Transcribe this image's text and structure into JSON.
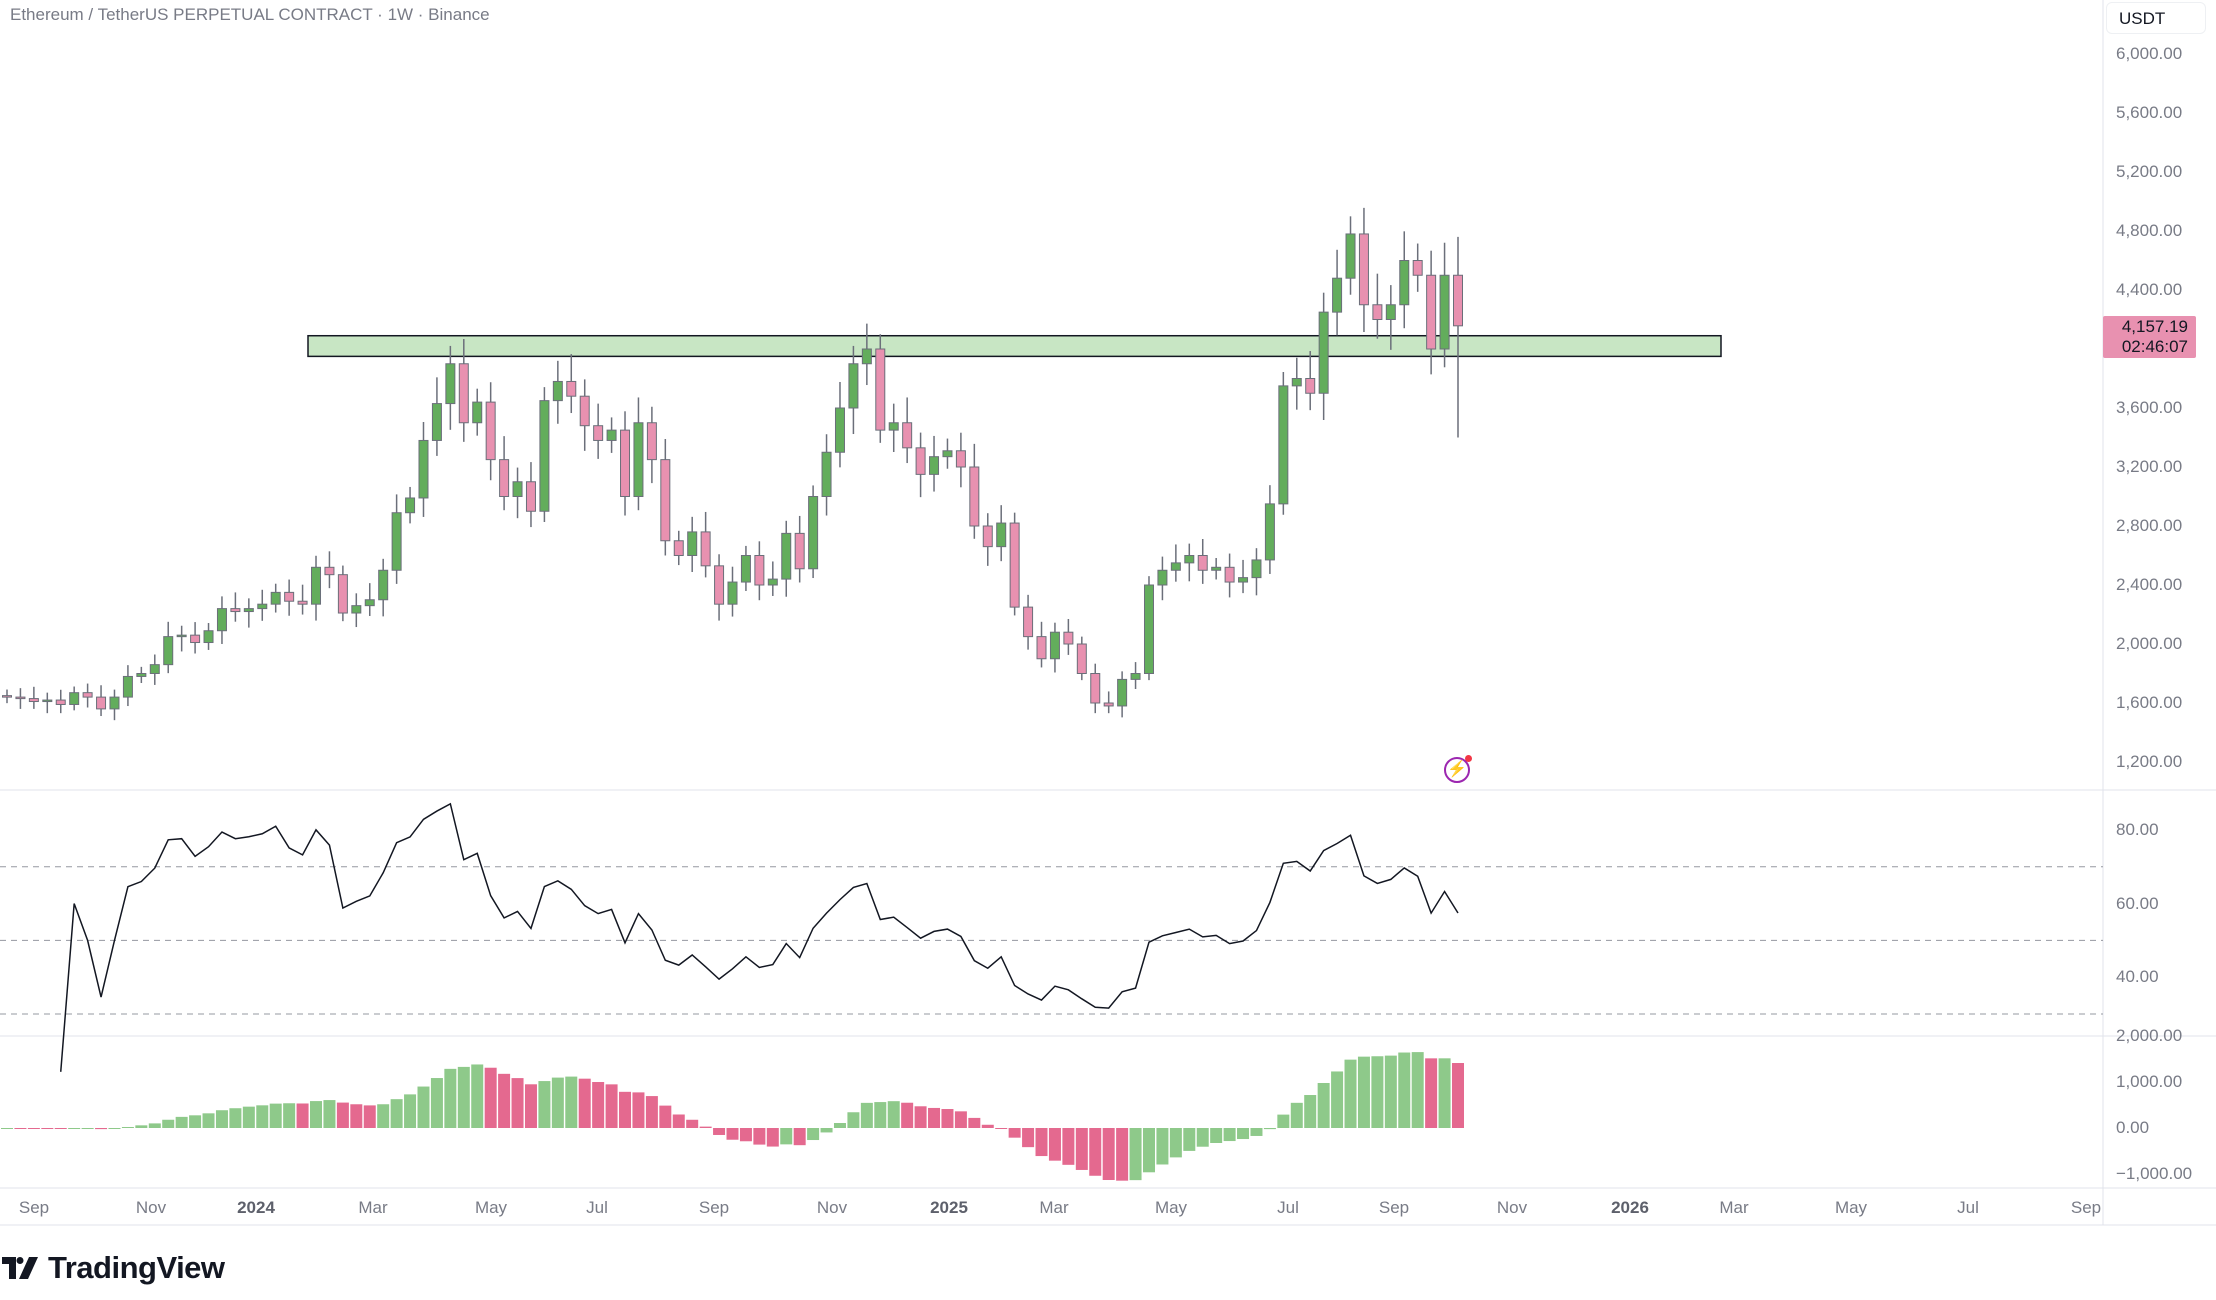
{
  "header": {
    "title": "Ethereum / TetherUS PERPETUAL CONTRACT · 1W · Binance"
  },
  "price_axis": {
    "currency": "USDT",
    "labels": [
      "6,000.00",
      "5,600.00",
      "5,200.00",
      "4,800.00",
      "4,400.00",
      "3,600.00",
      "3,200.00",
      "2,800.00",
      "2,400.00",
      "2,000.00",
      "1,600.00",
      "1,200.00"
    ],
    "values": [
      6000,
      5600,
      5200,
      4800,
      4400,
      3600,
      3200,
      2800,
      2400,
      2000,
      1600,
      1200
    ],
    "last_price": "4,157.19",
    "countdown": "02:46:07"
  },
  "rsi_axis": {
    "labels": [
      "80.00",
      "60.00",
      "40.00"
    ],
    "values": [
      80,
      60,
      40
    ],
    "levels": [
      70,
      50,
      30
    ]
  },
  "macd_axis": {
    "labels": [
      "2,000.00",
      "1,000.00",
      "0.00",
      "−1,000.00"
    ],
    "values": [
      2000,
      1000,
      0,
      -1000
    ]
  },
  "time_axis": {
    "labels": [
      "Sep",
      "Nov",
      "2024",
      "Mar",
      "May",
      "Jul",
      "Sep",
      "Nov",
      "2025",
      "Mar",
      "May",
      "Jul",
      "Sep",
      "Nov",
      "2026",
      "Mar",
      "May",
      "Jul",
      "Sep"
    ]
  },
  "colors": {
    "up": "#63ad5c",
    "down": "#e891b0",
    "zone": "#c8e6c4",
    "wick": "#6b6f7a"
  },
  "chart_data": {
    "type": "candlestick",
    "timeframe": "1W",
    "first_open": 1650,
    "closes": [
      1640,
      1630,
      1610,
      1620,
      1590,
      1670,
      1640,
      1560,
      1640,
      1780,
      1800,
      1860,
      2050,
      2060,
      2010,
      2090,
      2240,
      2220,
      2240,
      2270,
      2350,
      2290,
      2270,
      2520,
      2470,
      2210,
      2260,
      2300,
      2500,
      2890,
      2990,
      3380,
      3630,
      3900,
      3500,
      3640,
      3250,
      3000,
      3100,
      2900,
      3650,
      3780,
      3680,
      3480,
      3380,
      3450,
      3000,
      3500,
      3250,
      2700,
      2600,
      2760,
      2530,
      2270,
      2420,
      2600,
      2400,
      2440,
      2750,
      2510,
      3000,
      3300,
      3600,
      3900,
      4000,
      3450,
      3500,
      3330,
      3150,
      3270,
      3310,
      3200,
      2800,
      2660,
      2820,
      2250,
      2050,
      1900,
      2080,
      2000,
      1800,
      1600,
      1580,
      1760,
      1800,
      2400,
      2500,
      2550,
      2600,
      2500,
      2520,
      2420,
      2450,
      2570,
      2950,
      3750,
      3800,
      3700,
      4250,
      4480,
      4780,
      4300,
      4200,
      4300,
      4600,
      4500,
      4000,
      4500,
      4157.19
    ],
    "last_high": 4760,
    "last_low": 3400,
    "zone": {
      "top": 4090,
      "bottom": 3950
    },
    "indicators": [
      "RSI 14",
      "MACD histogram"
    ]
  },
  "branding": {
    "logo_text": "TradingView"
  }
}
